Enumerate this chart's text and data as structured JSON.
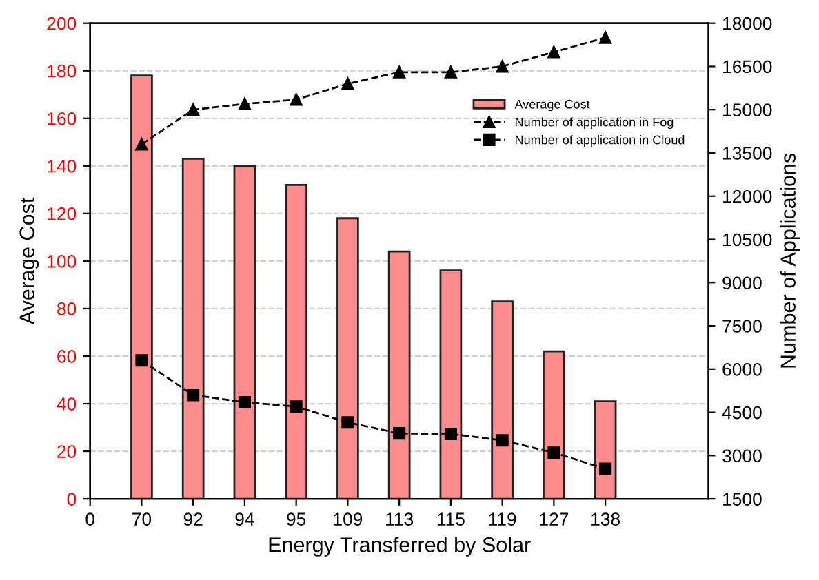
{
  "chart_data": {
    "type": "bar",
    "xlabel": "Energy Transferred by Solar",
    "ylabel": "Average Cost",
    "y2label": "Number of Applications",
    "categories": [
      "0",
      "70",
      "92",
      "94",
      "95",
      "109",
      "113",
      "115",
      "119",
      "127",
      "138"
    ],
    "series": [
      {
        "name": "Average Cost",
        "color": "#ff8c8c",
        "values": [
          null,
          178,
          143,
          140,
          132,
          118,
          104,
          96,
          83,
          62,
          41
        ]
      },
      {
        "name": "Number of application in Fog",
        "type": "line",
        "axis": "y2",
        "color": "#000000",
        "marker": "triangle",
        "line_style": "dashed",
        "values": [
          null,
          13800,
          15000,
          15200,
          15350,
          15900,
          16300,
          16300,
          16500,
          17000,
          17500
        ]
      },
      {
        "name": "Number of application in Cloud",
        "type": "line",
        "axis": "y2",
        "color": "#000000",
        "marker": "square",
        "line_style": "dashed",
        "values": [
          null,
          6300,
          5100,
          4850,
          4700,
          4150,
          3770,
          3750,
          3530,
          3100,
          2540
        ]
      }
    ],
    "ylim": [
      0,
      200
    ],
    "yticks": [
      0,
      20,
      40,
      60,
      80,
      100,
      120,
      140,
      160,
      180,
      200
    ],
    "y2lim": [
      1500,
      18000
    ],
    "y2ticks": [
      1500,
      3000,
      4500,
      6000,
      7500,
      9000,
      10500,
      12000,
      13500,
      15000,
      16500,
      18000
    ],
    "grid": "y",
    "legend": "right"
  }
}
